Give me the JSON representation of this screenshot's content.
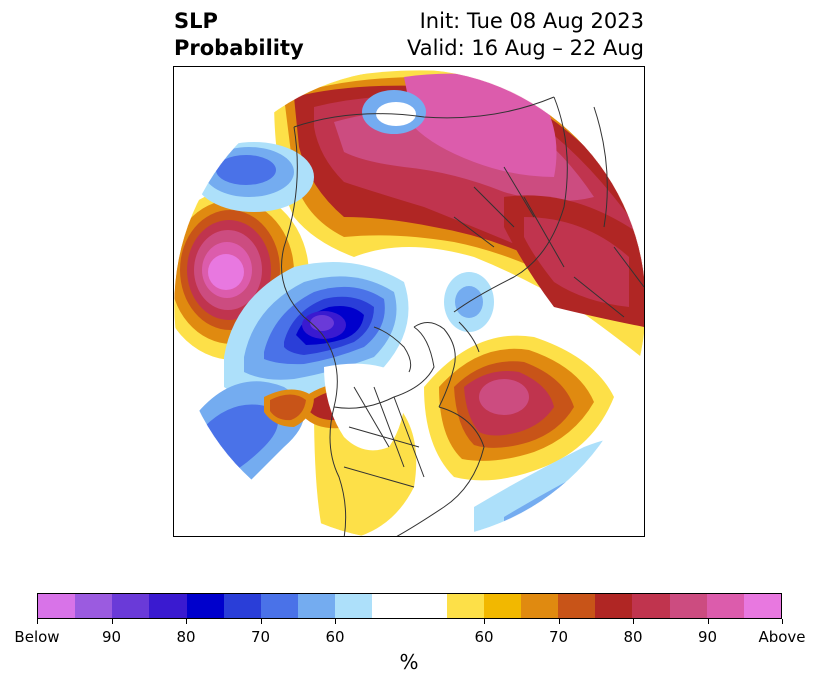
{
  "title": {
    "left_line1": "SLP",
    "left_line2": "Probability",
    "right_line1": "Init: Tue 08 Aug 2023",
    "right_line2": "Valid: 16 Aug – 22 Aug"
  },
  "colorbar": {
    "below_colors": [
      "#d873e8",
      "#9b5be0",
      "#6a3ad8",
      "#3a1ad0",
      "#0000cc",
      "#2a3ed8",
      "#4a72e8",
      "#74acf0",
      "#ade0fa"
    ],
    "neutral_color": "#ffffff",
    "above_colors": [
      "#fde048",
      "#f2b800",
      "#e08a10",
      "#c85418",
      "#b02624",
      "#c0344e",
      "#cc4c80",
      "#dc5cac",
      "#e878e0"
    ],
    "ticks": [
      "Below",
      "90",
      "80",
      "70",
      "60",
      "60",
      "70",
      "80",
      "90",
      "Above"
    ],
    "unit_label": "%"
  }
}
